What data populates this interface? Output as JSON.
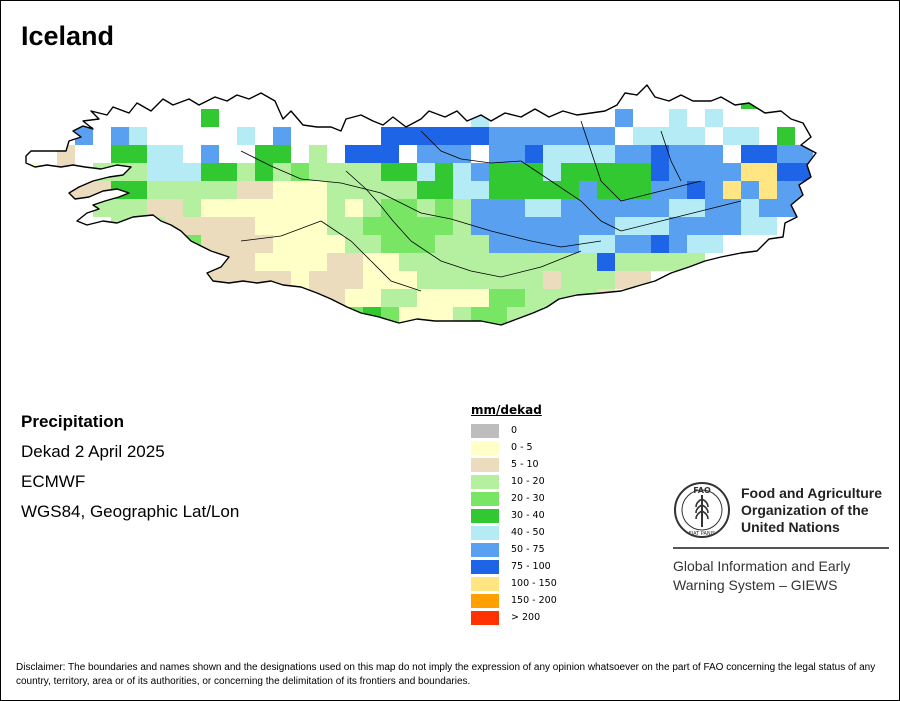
{
  "map": {
    "title": "Iceland",
    "variable": "Precipitation",
    "period": "Dekad 2 April 2025",
    "source": "ECMWF",
    "projection": "WGS84, Geographic Lat/Lon"
  },
  "legend": {
    "unit": "mm/dekad",
    "classes": [
      {
        "label": "0",
        "color": "#bdbdbd"
      },
      {
        "label": "0 - 5",
        "color": "#ffffc8"
      },
      {
        "label": "5 - 10",
        "color": "#ebdcbe"
      },
      {
        "label": "10 - 20",
        "color": "#b4f0a0"
      },
      {
        "label": "20 - 30",
        "color": "#78e664"
      },
      {
        "label": "30 - 40",
        "color": "#32c832"
      },
      {
        "label": "40 - 50",
        "color": "#b4ebf5"
      },
      {
        "label": "50 - 75",
        "color": "#5aa0f0"
      },
      {
        "label": "75 - 100",
        "color": "#1e64e6"
      },
      {
        "label": "100 - 150",
        "color": "#ffe682"
      },
      {
        "label": "150 - 200",
        "color": "#ffa000"
      },
      {
        "label": "> 200",
        "color": "#ff3200"
      }
    ]
  },
  "organization": {
    "name_line1": "Food and Agriculture",
    "name_line2": "Organization of the",
    "name_line3": "United Nations",
    "logo_text": "FAO",
    "logo_motto": "FIAT PANIS",
    "system_line1": "Global Information and Early",
    "system_line2": "Warning System – GIEWS"
  },
  "disclaimer": "Disclaimer: The boundaries and names shown and the designations used on this map do not imply the expression of any opinion whatsoever on the part of FAO concerning the legal status of any country, territory, area or of its authorities, or concerning the delimitation of its frontiers and boundaries."
}
